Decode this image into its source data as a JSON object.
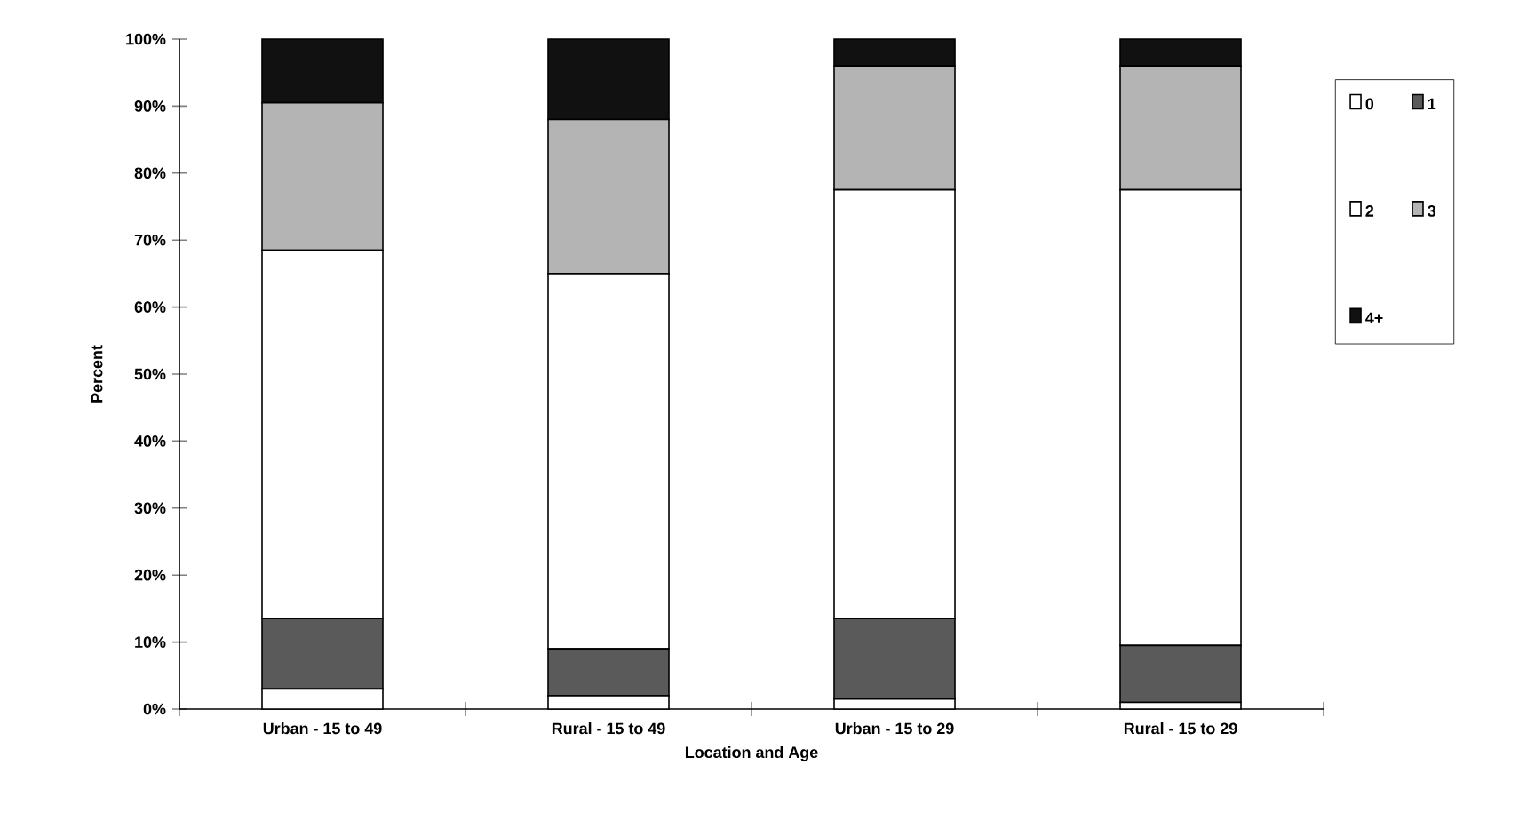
{
  "chart_data": {
    "type": "bar",
    "stacked": true,
    "xlabel": "Location and Age",
    "ylabel": "Percent",
    "categories": [
      "Urban - 15 to 49",
      "Rural - 15 to 49",
      "Urban - 15 to 29",
      "Rural - 15 to 29"
    ],
    "series": [
      {
        "name": "0",
        "color": "#ffffff",
        "values": [
          3,
          2,
          1.5,
          1
        ]
      },
      {
        "name": "1",
        "color": "#5a5a5a",
        "values": [
          10.5,
          7,
          12,
          8.5
        ]
      },
      {
        "name": "2",
        "color": "#ffffff",
        "values": [
          55,
          56,
          64,
          68
        ]
      },
      {
        "name": "3",
        "color": "#b4b4b4",
        "values": [
          22,
          23,
          18.5,
          18.5
        ]
      },
      {
        "name": "4+",
        "color": "#111111",
        "values": [
          9.5,
          12,
          4,
          4
        ]
      }
    ],
    "ylim": [
      0,
      100
    ],
    "yticks": [
      {
        "value": 0,
        "label": "0%"
      },
      {
        "value": 10,
        "label": "10%"
      },
      {
        "value": 20,
        "label": "20%"
      },
      {
        "value": 30,
        "label": "30%"
      },
      {
        "value": 40,
        "label": "40%"
      },
      {
        "value": 50,
        "label": "50%"
      },
      {
        "value": 60,
        "label": "60%"
      },
      {
        "value": 70,
        "label": "70%"
      },
      {
        "value": 80,
        "label": "80%"
      },
      {
        "value": 90,
        "label": "90%"
      },
      {
        "value": 100,
        "label": "100%"
      }
    ],
    "legend": "right"
  }
}
